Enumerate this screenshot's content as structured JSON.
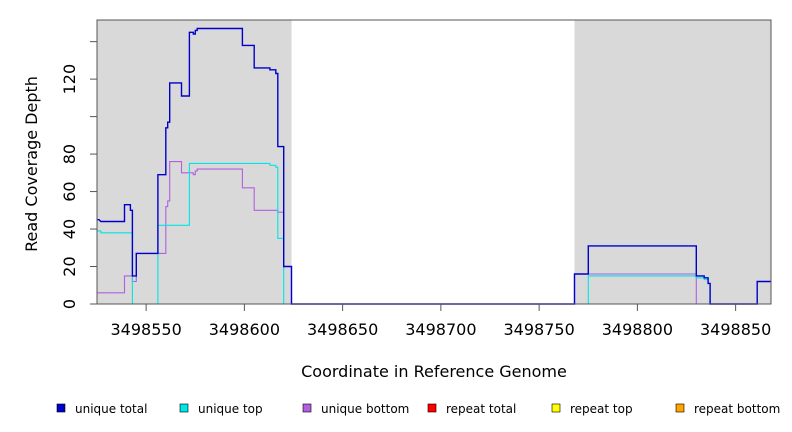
{
  "chart_data": {
    "type": "line",
    "xlabel": "Coordinate in Reference Genome",
    "ylabel": "Read Coverage Depth",
    "xlim": [
      3498525,
      3498868
    ],
    "ylim": [
      0,
      150
    ],
    "xticks": [
      3498550,
      3498600,
      3498650,
      3498700,
      3498750,
      3498800,
      3498850
    ],
    "xtick_labels": [
      "3498550",
      "3498600",
      "3498650",
      "3498700",
      "3498750",
      "3498800",
      "3498850"
    ],
    "yticks": [
      0,
      20,
      40,
      60,
      80,
      100,
      120,
      140
    ],
    "ytick_labels": [
      "0",
      "20",
      "40",
      "60",
      "80",
      "",
      "120",
      ""
    ],
    "shaded_regions": [
      [
        3498525,
        3498624
      ],
      [
        3498768,
        3498868
      ]
    ],
    "colors": {
      "shade": "#d9d9d9",
      "unique_total": "#0000cc",
      "unique_top": "#00e5e5",
      "unique_bottom": "#b060e0",
      "repeat_total": "#ff0000",
      "repeat_top": "#ffff00",
      "repeat_bottom": "#ffa500"
    },
    "series": [
      {
        "name": "unique total",
        "color": "#0000cc",
        "points": [
          [
            3498525,
            45
          ],
          [
            3498526,
            45
          ],
          [
            3498527,
            44
          ],
          [
            3498539,
            44
          ],
          [
            3498539,
            53
          ],
          [
            3498542,
            53
          ],
          [
            3498542,
            50
          ],
          [
            3498543,
            50
          ],
          [
            3498543,
            15
          ],
          [
            3498545,
            15
          ],
          [
            3498545,
            27
          ],
          [
            3498556,
            27
          ],
          [
            3498556,
            69
          ],
          [
            3498560,
            69
          ],
          [
            3498560,
            94
          ],
          [
            3498561,
            94
          ],
          [
            3498561,
            97
          ],
          [
            3498562,
            97
          ],
          [
            3498562,
            118
          ],
          [
            3498568,
            118
          ],
          [
            3498568,
            111
          ],
          [
            3498572,
            111
          ],
          [
            3498572,
            145
          ],
          [
            3498574,
            145
          ],
          [
            3498574,
            144
          ],
          [
            3498575,
            144
          ],
          [
            3498575,
            146
          ],
          [
            3498576,
            146
          ],
          [
            3498576,
            147
          ],
          [
            3498599,
            147
          ],
          [
            3498599,
            138
          ],
          [
            3498605,
            138
          ],
          [
            3498605,
            126
          ],
          [
            3498613,
            126
          ],
          [
            3498613,
            125
          ],
          [
            3498616,
            125
          ],
          [
            3498616,
            123
          ],
          [
            3498617,
            123
          ],
          [
            3498617,
            84
          ],
          [
            3498620,
            84
          ],
          [
            3498620,
            20
          ],
          [
            3498624,
            20
          ],
          [
            3498624,
            0
          ],
          [
            3498768,
            0
          ],
          [
            3498768,
            16
          ],
          [
            3498775,
            16
          ],
          [
            3498775,
            31
          ],
          [
            3498830,
            31
          ],
          [
            3498830,
            15
          ],
          [
            3498834,
            15
          ],
          [
            3498834,
            14
          ],
          [
            3498836,
            14
          ],
          [
            3498836,
            11
          ],
          [
            3498837,
            11
          ],
          [
            3498837,
            0
          ],
          [
            3498861,
            0
          ],
          [
            3498861,
            12
          ],
          [
            3498868,
            12
          ]
        ]
      },
      {
        "name": "unique top",
        "color": "#00e5e5",
        "points": [
          [
            3498525,
            39
          ],
          [
            3498527,
            39
          ],
          [
            3498527,
            38
          ],
          [
            3498543,
            38
          ],
          [
            3498543,
            0
          ],
          [
            3498556,
            0
          ],
          [
            3498556,
            42
          ],
          [
            3498572,
            42
          ],
          [
            3498572,
            75
          ],
          [
            3498613,
            75
          ],
          [
            3498613,
            74
          ],
          [
            3498616,
            74
          ],
          [
            3498616,
            73
          ],
          [
            3498617,
            73
          ],
          [
            3498617,
            35
          ],
          [
            3498620,
            35
          ],
          [
            3498620,
            0
          ],
          [
            3498775,
            0
          ],
          [
            3498775,
            15
          ],
          [
            3498830,
            15
          ],
          [
            3498830,
            14
          ],
          [
            3498834,
            14
          ],
          [
            3498834,
            13
          ],
          [
            3498836,
            13
          ],
          [
            3498836,
            11
          ],
          [
            3498837,
            11
          ],
          [
            3498837,
            0
          ],
          [
            3498868,
            0
          ]
        ]
      },
      {
        "name": "unique bottom",
        "color": "#b060e0",
        "points": [
          [
            3498525,
            6
          ],
          [
            3498539,
            6
          ],
          [
            3498539,
            15
          ],
          [
            3498543,
            15
          ],
          [
            3498543,
            12
          ],
          [
            3498545,
            12
          ],
          [
            3498545,
            27
          ],
          [
            3498560,
            27
          ],
          [
            3498560,
            52
          ],
          [
            3498561,
            52
          ],
          [
            3498561,
            55
          ],
          [
            3498562,
            55
          ],
          [
            3498562,
            76
          ],
          [
            3498568,
            76
          ],
          [
            3498568,
            70
          ],
          [
            3498574,
            70
          ],
          [
            3498574,
            69
          ],
          [
            3498575,
            69
          ],
          [
            3498575,
            71
          ],
          [
            3498576,
            71
          ],
          [
            3498576,
            72
          ],
          [
            3498599,
            72
          ],
          [
            3498599,
            62
          ],
          [
            3498605,
            62
          ],
          [
            3498605,
            50
          ],
          [
            3498617,
            50
          ],
          [
            3498617,
            49
          ],
          [
            3498620,
            49
          ],
          [
            3498620,
            20
          ],
          [
            3498624,
            20
          ],
          [
            3498624,
            0
          ],
          [
            3498768,
            0
          ],
          [
            3498768,
            16
          ],
          [
            3498830,
            16
          ],
          [
            3498830,
            0
          ],
          [
            3498868,
            0
          ]
        ]
      },
      {
        "name": "repeat total",
        "color": "#ff0000",
        "points": [
          [
            3498525,
            0
          ],
          [
            3498868,
            0
          ]
        ]
      },
      {
        "name": "repeat top",
        "color": "#ffff00",
        "points": [
          [
            3498525,
            0
          ],
          [
            3498868,
            0
          ]
        ]
      },
      {
        "name": "repeat bottom",
        "color": "#ffa500",
        "points": [
          [
            3498525,
            0
          ],
          [
            3498868,
            0
          ]
        ]
      }
    ],
    "legend": {
      "placement": "bottom",
      "entries": [
        {
          "label": "unique total",
          "color": "#0000cc"
        },
        {
          "label": "unique top",
          "color": "#00e5e5"
        },
        {
          "label": "unique bottom",
          "color": "#b060e0"
        },
        {
          "label": "repeat total",
          "color": "#ff0000"
        },
        {
          "label": "repeat top",
          "color": "#ffff00"
        },
        {
          "label": "repeat bottom",
          "color": "#ffa500"
        }
      ]
    }
  }
}
